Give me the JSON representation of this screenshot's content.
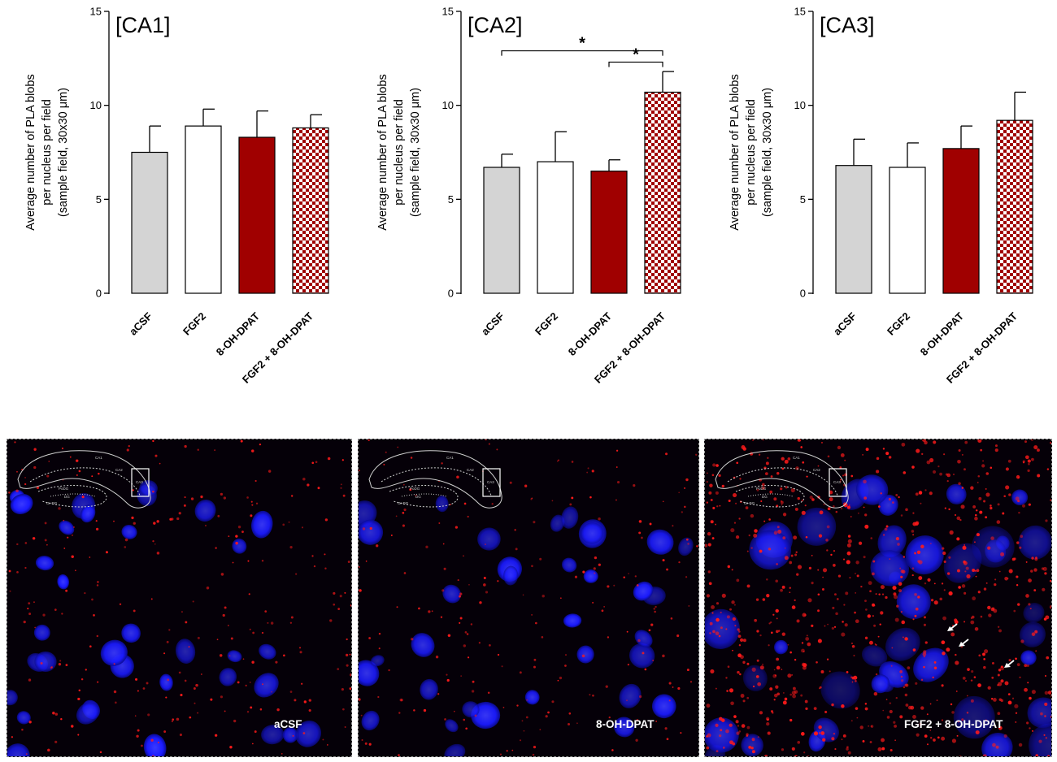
{
  "colors": {
    "aCSF": "#d4d4d4",
    "FGF2": "#ffffff",
    "8-OH-DPAT": "#a00000",
    "FGF2 + 8-OH-DPAT": "checkered #a00000/#ffffff",
    "micrograph_background": "#050008",
    "nuclei": "#1a1aff",
    "pla_blobs": "#ff1a1a"
  },
  "chart_data": [
    {
      "type": "bar",
      "title": "[CA1]",
      "ylabel": [
        "Average number of PLA blobs",
        "per nucleus per field",
        "(sample field, 30x30 μm)"
      ],
      "xlabel": "",
      "ylim": [
        0,
        15
      ],
      "yticks": [
        "0",
        "5",
        "10",
        "15"
      ],
      "categories": [
        "aCSF",
        "FGF2",
        "8-OH-DPAT",
        "FGF2 + 8-OH-DPAT"
      ],
      "values": [
        7.5,
        8.9,
        8.3,
        8.8
      ],
      "error": [
        1.4,
        0.9,
        1.4,
        0.7
      ],
      "significance": []
    },
    {
      "type": "bar",
      "title": "[CA2]",
      "ylabel": [
        "Average number of PLA blobs",
        "per nucleus per field",
        "(sample field, 30x30 μm)"
      ],
      "xlabel": "",
      "ylim": [
        0,
        15
      ],
      "yticks": [
        "0",
        "5",
        "10",
        "15"
      ],
      "categories": [
        "aCSF",
        "FGF2",
        "8-OH-DPAT",
        "FGF2 + 8-OH-DPAT"
      ],
      "values": [
        6.7,
        7.0,
        6.5,
        10.7
      ],
      "error": [
        0.7,
        1.6,
        0.6,
        1.1
      ],
      "significance": [
        {
          "from": 0,
          "to": 3,
          "label": "*",
          "level": 12.9
        },
        {
          "from": 2,
          "to": 3,
          "label": "*",
          "level": 12.3
        }
      ]
    },
    {
      "type": "bar",
      "title": "[CA3]",
      "ylabel": [
        "Average number of PLA blobs",
        "per nucleus per field",
        "(sample field, 30x30 μm)"
      ],
      "xlabel": "",
      "ylim": [
        0,
        15
      ],
      "yticks": [
        "0",
        "5",
        "10",
        "15"
      ],
      "categories": [
        "aCSF",
        "FGF2",
        "8-OH-DPAT",
        "FGF2 + 8-OH-DPAT"
      ],
      "values": [
        6.8,
        6.7,
        7.7,
        9.2
      ],
      "error": [
        1.4,
        1.3,
        1.2,
        1.5
      ],
      "significance": []
    }
  ],
  "micrographs": [
    {
      "label": "aCSF",
      "pla_density": 0.3,
      "arrows": 0
    },
    {
      "label": "8-OH-DPAT",
      "pla_density": 0.25,
      "arrows": 0
    },
    {
      "label": "FGF2 + 8-OH-DPAT",
      "pla_density": 0.9,
      "arrows": 3
    }
  ],
  "inset": {
    "region_labels": [
      "CA1",
      "CA2",
      "CA3",
      "PoDG",
      "DG",
      "Gr-DG"
    ]
  }
}
